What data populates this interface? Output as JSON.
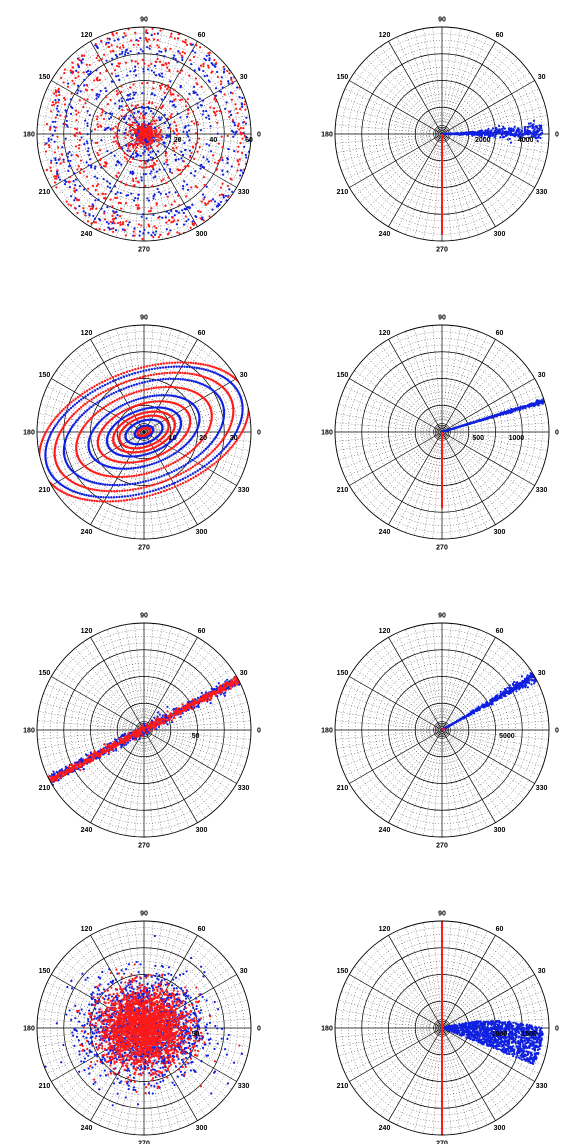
{
  "colors": {
    "series_a": "#1020e0",
    "series_b": "#ff1a1a",
    "grid": "#000000"
  },
  "angle_labels": [
    "0",
    "30",
    "60",
    "90",
    "120",
    "150",
    "180",
    "210",
    "240",
    "270",
    "300",
    "330"
  ],
  "chart_data": [
    {
      "type": "scatter",
      "coord": "polar",
      "grid": true,
      "rlim": [
        0,
        60
      ],
      "radial_tick_labels": [
        "20",
        "40",
        "60"
      ],
      "pattern": "rings",
      "series": [
        {
          "color": "#1020e0",
          "rings": [
            4,
            13,
            23,
            35,
            47,
            55
          ]
        },
        {
          "color": "#ff1a1a",
          "rings": [
            5,
            9,
            17,
            28,
            41,
            51,
            58
          ]
        }
      ]
    },
    {
      "type": "scatter",
      "coord": "polar",
      "grid": true,
      "rlim": [
        0,
        5000
      ],
      "radial_tick_labels": [
        "2000",
        "4000"
      ],
      "pattern": "rays",
      "series": [
        {
          "color": "#1020e0",
          "theta": 1,
          "r_range": [
            0,
            4700
          ],
          "spread_deg": 3
        },
        {
          "color": "#ff1a1a",
          "theta": 270,
          "r_range": [
            0,
            4700
          ],
          "spread_deg": 0
        }
      ]
    },
    {
      "type": "scatter",
      "coord": "polar",
      "grid": true,
      "rlim": [
        0,
        35
      ],
      "radial_tick_labels": [
        "10",
        "20",
        "30"
      ],
      "pattern": "ellipses",
      "tilt_deg": 20,
      "series": [
        {
          "color": "#1020e0",
          "rings": [
            3,
            6,
            12,
            18,
            26,
            32
          ]
        },
        {
          "color": "#ff1a1a",
          "rings": [
            2,
            8,
            10,
            15,
            22,
            29,
            34
          ]
        }
      ]
    },
    {
      "type": "scatter",
      "coord": "polar",
      "grid": true,
      "rlim": [
        0,
        1400
      ],
      "radial_tick_labels": [
        "500",
        "1000"
      ],
      "pattern": "rays",
      "series": [
        {
          "color": "#1020e0",
          "theta": 17,
          "r_range": [
            0,
            1400
          ],
          "spread_deg": 0.6
        },
        {
          "color": "#ff1a1a",
          "theta": 270,
          "r_range": [
            0,
            1000
          ],
          "spread_deg": 0
        }
      ]
    },
    {
      "type": "scatter",
      "coord": "polar",
      "grid": true,
      "rlim": [
        0,
        100
      ],
      "radial_tick_labels": [
        "50"
      ],
      "pattern": "diagonal_line",
      "series": [
        {
          "color": "#1020e0",
          "theta": 28,
          "r_range": [
            -105,
            105
          ],
          "width": 2.5
        },
        {
          "color": "#ff1a1a",
          "theta": 28,
          "r_range": [
            -102,
            102
          ],
          "width": 1.8
        }
      ]
    },
    {
      "type": "scatter",
      "coord": "polar",
      "grid": true,
      "rlim": [
        0,
        8000
      ],
      "radial_tick_labels": [
        "5000"
      ],
      "pattern": "rays",
      "series": [
        {
          "color": "#1020e0",
          "theta": 30,
          "r_range": [
            0,
            8000
          ],
          "spread_deg": 1.5
        },
        {
          "color": "#ff1a1a",
          "theta": 30,
          "r_range": [
            0,
            250
          ],
          "spread_deg": 0
        }
      ]
    },
    {
      "type": "scatter",
      "coord": "polar",
      "grid": true,
      "rlim": [
        0,
        100
      ],
      "radial_tick_labels": [
        "50"
      ],
      "pattern": "cloud",
      "series": [
        {
          "color": "#1020e0",
          "sigma": 48,
          "count": 1500
        },
        {
          "color": "#ff1a1a",
          "sigma": 36,
          "count": 2200
        }
      ]
    },
    {
      "type": "scatter",
      "coord": "polar",
      "grid": true,
      "rlim": [
        0,
        1800
      ],
      "radial_tick_labels": [
        "1000",
        "1500"
      ],
      "pattern": "blob",
      "series": [
        {
          "color": "#1020e0",
          "r_range": [
            50,
            1700
          ],
          "theta_range": [
            -25,
            20
          ],
          "count": 1300
        },
        {
          "color": "#ff1a1a",
          "theta": 90,
          "r_range": [
            -1800,
            1800
          ],
          "spread_deg": 0
        }
      ]
    }
  ]
}
